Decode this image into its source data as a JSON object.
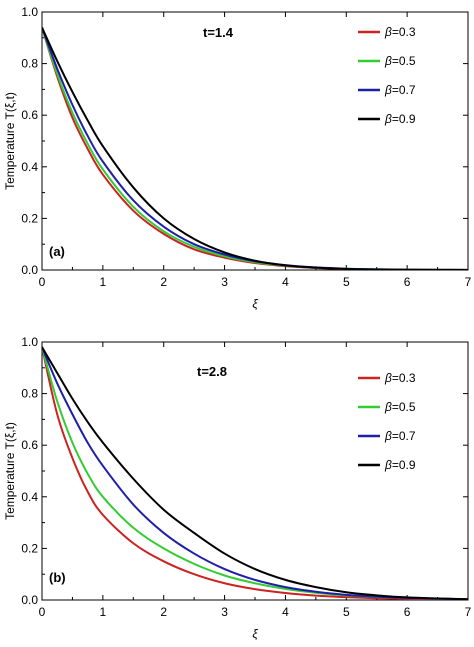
{
  "chart_data": [
    {
      "type": "line",
      "title": "t=1.4",
      "panel_label": "(a)",
      "xlabel": "ξ",
      "ylabel": "Temperature T(ξ,t)",
      "xlim": [
        0,
        7
      ],
      "ylim": [
        0,
        1.0
      ],
      "xticks": [
        "0",
        "1",
        "2",
        "3",
        "4",
        "5",
        "6",
        "7"
      ],
      "yticks": [
        "0.0",
        "0.2",
        "0.4",
        "0.6",
        "0.8",
        "1.0"
      ],
      "grid": false,
      "legend_position": "top-right",
      "x": [
        0,
        0.25,
        0.5,
        0.75,
        1,
        1.5,
        2,
        2.5,
        3,
        3.5,
        4,
        4.5,
        5,
        5.5,
        6,
        6.5,
        7
      ],
      "series": [
        {
          "name": "β=0.3",
          "symbol": "β",
          "value_text": "=0.3",
          "color": "#cc2222",
          "values": [
            0.94,
            0.75,
            0.59,
            0.47,
            0.37,
            0.23,
            0.14,
            0.08,
            0.048,
            0.027,
            0.015,
            0.008,
            0.004,
            0.002,
            0.001,
            0.0005,
            0.0002
          ]
        },
        {
          "name": "β=0.5",
          "symbol": "β",
          "value_text": "=0.5",
          "color": "#33cc33",
          "values": [
            0.94,
            0.76,
            0.61,
            0.49,
            0.39,
            0.245,
            0.15,
            0.09,
            0.053,
            0.03,
            0.017,
            0.009,
            0.005,
            0.0025,
            0.0012,
            0.0006,
            0.0003
          ]
        },
        {
          "name": "β=0.7",
          "symbol": "β",
          "value_text": "=0.7",
          "color": "#1f1fa8",
          "values": [
            0.94,
            0.78,
            0.64,
            0.52,
            0.42,
            0.27,
            0.168,
            0.1,
            0.06,
            0.034,
            0.019,
            0.01,
            0.005,
            0.0025,
            0.0012,
            0.0006,
            0.0003
          ]
        },
        {
          "name": "β=0.9",
          "symbol": "β",
          "value_text": "=0.9",
          "color": "#000000",
          "values": [
            0.94,
            0.81,
            0.69,
            0.58,
            0.48,
            0.32,
            0.2,
            0.12,
            0.068,
            0.036,
            0.018,
            0.009,
            0.004,
            0.002,
            0.001,
            0.0005,
            0.0002
          ]
        }
      ]
    },
    {
      "type": "line",
      "title": "t=2.8",
      "panel_label": "(b)",
      "xlabel": "ξ",
      "ylabel": "Temperature T(ξ,t)",
      "xlim": [
        0,
        7
      ],
      "ylim": [
        0,
        1.0
      ],
      "xticks": [
        "0",
        "1",
        "2",
        "3",
        "4",
        "5",
        "6",
        "7"
      ],
      "yticks": [
        "0.0",
        "0.2",
        "0.4",
        "0.6",
        "0.8",
        "1.0"
      ],
      "grid": false,
      "legend_position": "top-right",
      "x": [
        0,
        0.25,
        0.5,
        0.75,
        1,
        1.5,
        2,
        2.5,
        3,
        3.5,
        4,
        4.5,
        5,
        5.5,
        6,
        6.5,
        7
      ],
      "series": [
        {
          "name": "β=0.3",
          "symbol": "β",
          "value_text": "=0.3",
          "color": "#cc2222",
          "values": [
            0.98,
            0.72,
            0.55,
            0.42,
            0.33,
            0.22,
            0.15,
            0.1,
            0.065,
            0.042,
            0.027,
            0.017,
            0.011,
            0.007,
            0.0045,
            0.003,
            0.002
          ]
        },
        {
          "name": "β=0.5",
          "symbol": "β",
          "value_text": "=0.5",
          "color": "#33cc33",
          "values": [
            0.98,
            0.77,
            0.61,
            0.49,
            0.4,
            0.28,
            0.2,
            0.14,
            0.095,
            0.065,
            0.043,
            0.028,
            0.018,
            0.012,
            0.008,
            0.005,
            0.003
          ]
        },
        {
          "name": "β=0.7",
          "symbol": "β",
          "value_text": "=0.7",
          "color": "#1f1fa8",
          "values": [
            0.98,
            0.84,
            0.72,
            0.61,
            0.52,
            0.37,
            0.26,
            0.18,
            0.12,
            0.078,
            0.05,
            0.032,
            0.02,
            0.013,
            0.008,
            0.005,
            0.003
          ]
        },
        {
          "name": "β=0.9",
          "symbol": "β",
          "value_text": "=0.9",
          "color": "#000000",
          "values": [
            0.98,
            0.88,
            0.78,
            0.69,
            0.61,
            0.47,
            0.35,
            0.26,
            0.18,
            0.12,
            0.078,
            0.05,
            0.03,
            0.018,
            0.01,
            0.006,
            0.003
          ]
        }
      ]
    }
  ]
}
